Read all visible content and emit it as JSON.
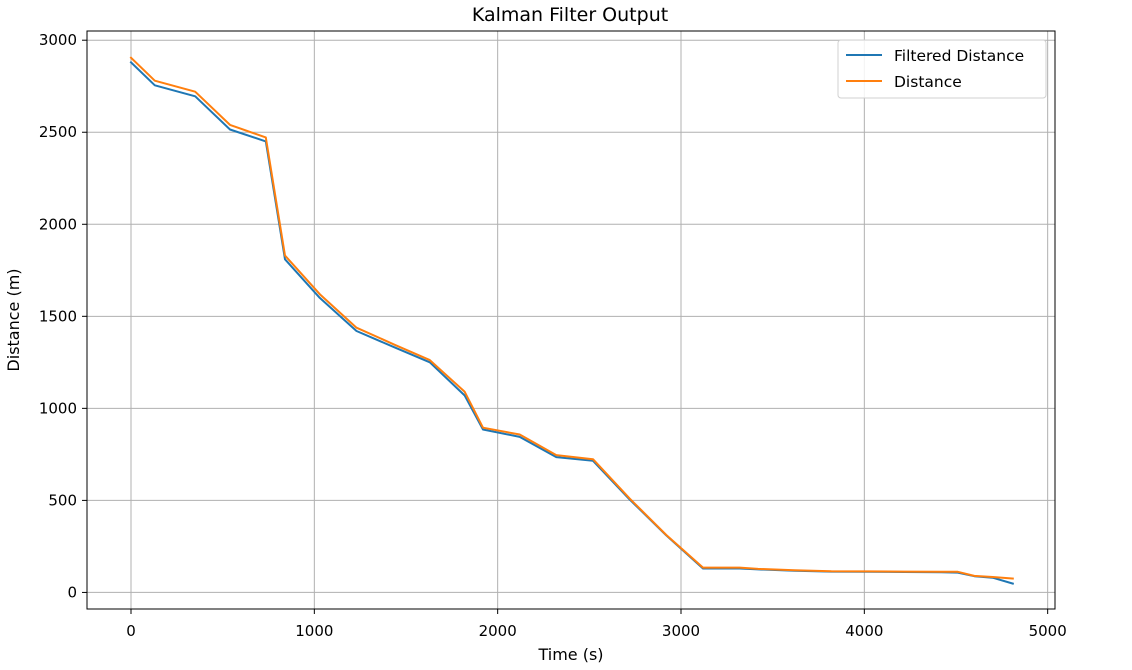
{
  "chart_data": {
    "type": "line",
    "title": "Kalman Filter Output",
    "xlabel": "Time (s)",
    "ylabel": "Distance (m)",
    "xlim": [
      -240,
      5040
    ],
    "ylim": [
      -90,
      3050
    ],
    "xticks": [
      0,
      1000,
      2000,
      3000,
      4000,
      5000
    ],
    "yticks": [
      0,
      500,
      1000,
      1500,
      2000,
      2500,
      3000
    ],
    "grid": true,
    "legend_position": "top-right",
    "series": [
      {
        "name": "Filtered Distance",
        "color": "#1f77b4",
        "x": [
          0,
          130,
          350,
          540,
          735,
          840,
          1030,
          1230,
          1440,
          1630,
          1820,
          1920,
          2120,
          2320,
          2520,
          2720,
          2920,
          3120,
          3320,
          3420,
          3620,
          3820,
          4020,
          4220,
          4420,
          4510,
          4600,
          4700,
          4810
        ],
        "y": [
          2880,
          2755,
          2695,
          2515,
          2450,
          1810,
          1600,
          1420,
          1330,
          1250,
          1070,
          885,
          845,
          735,
          715,
          505,
          310,
          130,
          130,
          125,
          118,
          113,
          112,
          111,
          110,
          108,
          88,
          80,
          48
        ]
      },
      {
        "name": "Distance",
        "color": "#ff7f0e",
        "x": [
          0,
          130,
          350,
          540,
          735,
          840,
          1030,
          1230,
          1440,
          1630,
          1820,
          1920,
          2120,
          2320,
          2520,
          2720,
          2920,
          3120,
          3320,
          3420,
          3620,
          3820,
          4020,
          4220,
          4420,
          4510,
          4600,
          4700,
          4810
        ],
        "y": [
          2905,
          2780,
          2720,
          2540,
          2472,
          1830,
          1620,
          1438,
          1345,
          1262,
          1090,
          895,
          858,
          746,
          724,
          510,
          312,
          135,
          135,
          128,
          120,
          115,
          114,
          113,
          112,
          112,
          90,
          84,
          75
        ]
      }
    ]
  }
}
